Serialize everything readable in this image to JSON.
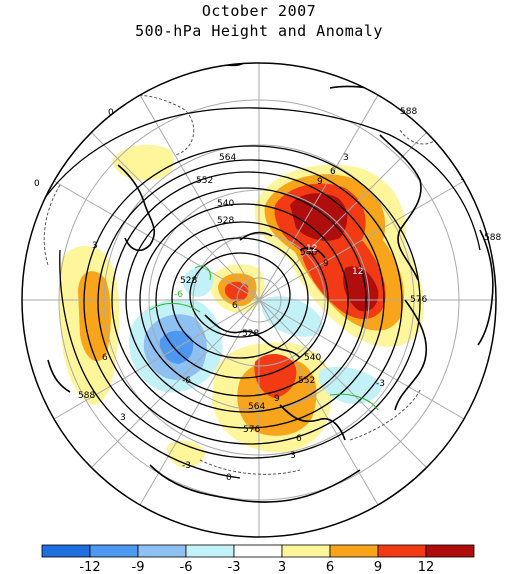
{
  "title": "October 2007",
  "subtitle": "500-hPa Height and Anomaly",
  "contour_labels": {
    "heights": [
      "564",
      "552",
      "540",
      "528",
      "528",
      "540",
      "552",
      "564",
      "576",
      "576",
      "588",
      "588",
      "588",
      "528",
      "540"
    ],
    "anomalies": [
      "0",
      "0",
      "0",
      "-3",
      "-6",
      "-6",
      "3",
      "6",
      "3",
      "6",
      "9",
      "12",
      "12",
      "9",
      "9",
      "6",
      "6",
      "3",
      "3",
      "-3"
    ]
  },
  "colorbar": {
    "labels": [
      "-12",
      "-9",
      "-6",
      "-3",
      "3",
      "6",
      "9",
      "12"
    ],
    "colors": [
      "#1f6fe0",
      "#4d98f0",
      "#8fc0f2",
      "#c2f2f7",
      "#ffffff",
      "#fff59a",
      "#f9a51c",
      "#f23a14",
      "#b00d0d"
    ]
  }
}
